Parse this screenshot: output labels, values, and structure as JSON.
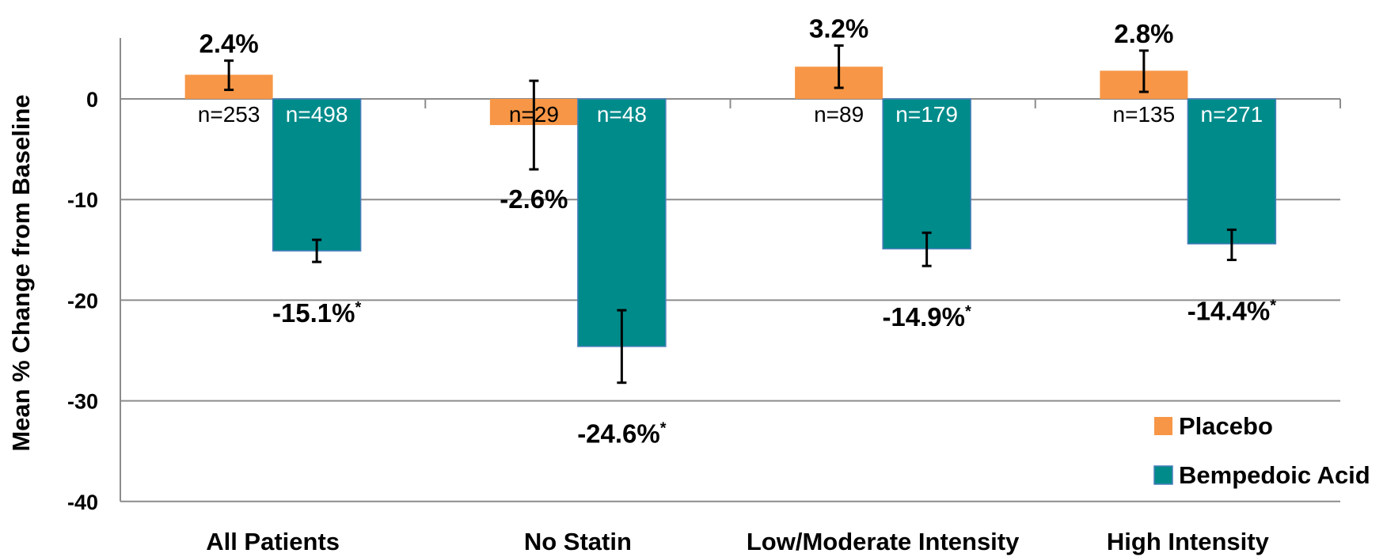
{
  "chart_data": {
    "type": "bar",
    "title": "",
    "xlabel": "",
    "ylabel": "Mean % Change from Baseline",
    "ylim": [
      -40,
      5
    ],
    "yticks": [
      0,
      -10,
      -20,
      -30,
      -40
    ],
    "ytick_labels": [
      "0",
      "-10",
      "-20",
      "-30",
      "-40"
    ],
    "grid": true,
    "legend_position": "bottom-right",
    "categories": [
      "All Patients",
      "No Statin",
      "Low/Moderate Intensity",
      "High Intensity"
    ],
    "series": [
      {
        "name": "Placebo",
        "color": "#f79646",
        "values": [
          2.4,
          -2.6,
          3.2,
          2.8
        ],
        "labels": [
          "2.4%",
          "-2.6%",
          "3.2%",
          "2.8%"
        ],
        "error_low": [
          0.9,
          -7.0,
          1.1,
          0.7
        ],
        "error_high": [
          3.8,
          1.8,
          5.3,
          4.8
        ],
        "n": [
          "n=253",
          "n=29",
          "n=89",
          "n=135"
        ],
        "significant": [
          false,
          false,
          false,
          false
        ]
      },
      {
        "name": "Bempedoic Acid",
        "color": "#008b8b",
        "values": [
          -15.1,
          -24.6,
          -14.9,
          -14.4
        ],
        "labels": [
          "-15.1%",
          "-24.6%",
          "-14.9%",
          "-14.4%"
        ],
        "error_low": [
          -16.2,
          -28.2,
          -16.6,
          -16.0
        ],
        "error_high": [
          -14.0,
          -21.0,
          -13.3,
          -13.0
        ],
        "n": [
          "n=498",
          "n=48",
          "n=179",
          "n=271"
        ],
        "significant": [
          true,
          true,
          true,
          true
        ]
      }
    ],
    "significance_marker": "*"
  }
}
